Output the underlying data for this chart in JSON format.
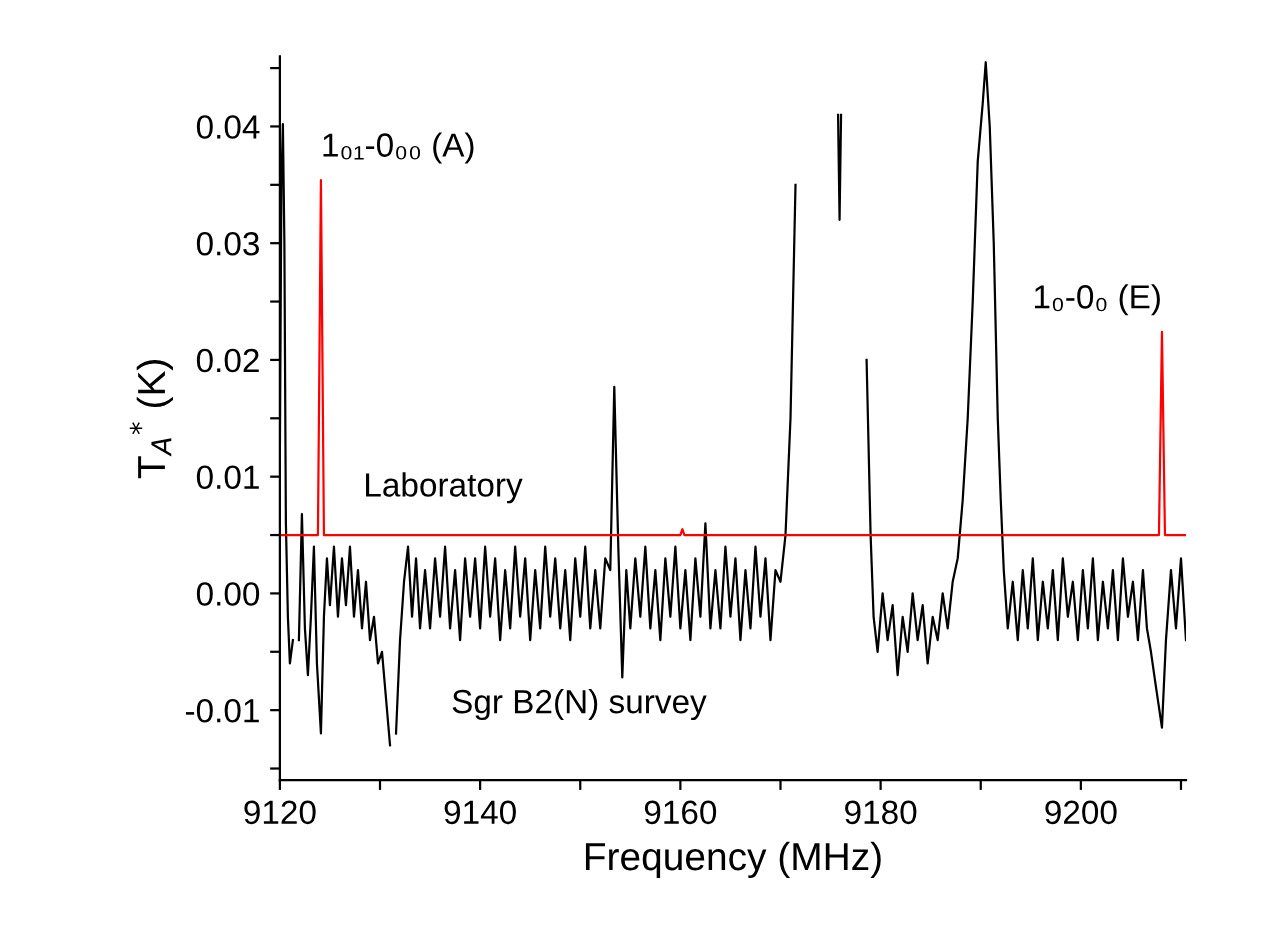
{
  "chart_data": {
    "type": "line",
    "xlabel": "Frequency (MHz)",
    "ylabel": "T$_{A}$$^{*}$ (K)",
    "xlim": [
      9120,
      9210.5
    ],
    "ylim": [
      -0.016,
      0.046
    ],
    "xticks": [
      9120,
      {
        "value": 9130,
        "label": null
      },
      9140,
      {
        "value": 9150,
        "label": null
      },
      9160,
      {
        "value": 9170,
        "label": null
      },
      9180,
      {
        "value": 9190,
        "label": null
      },
      9200,
      {
        "value": 9210,
        "label": null
      }
    ],
    "yticks": [
      {
        "value": -0.015,
        "label": null
      },
      {
        "value": -0.01,
        "label": "-0.01"
      },
      {
        "value": -0.005,
        "label": null
      },
      {
        "value": 0.0,
        "label": "0.00"
      },
      {
        "value": 0.005,
        "label": null
      },
      {
        "value": 0.01,
        "label": "0.01"
      },
      {
        "value": 0.015,
        "label": null
      },
      {
        "value": 0.02,
        "label": "0.02"
      },
      {
        "value": 0.025,
        "label": null
      },
      {
        "value": 0.03,
        "label": "0.03"
      },
      {
        "value": 0.035,
        "label": null
      },
      {
        "value": 0.04,
        "label": "0.04"
      },
      {
        "value": 0.045,
        "label": null
      }
    ],
    "grid": false,
    "legend": false,
    "marker": "none",
    "line_style": "solid",
    "annotations": [
      {
        "text": "1₀₁-0₀₀ (A)",
        "x": 9124.1,
        "y": 0.0354
      },
      {
        "text": "1₀-0₀ (E)",
        "x": 9208.1,
        "y": 0.0224
      }
    ],
    "series": [
      {
        "name": "Sgr B2(N) survey",
        "color": "#000000",
        "x": [
          9120.0,
          9120.15,
          9120.3,
          9120.45,
          9120.6,
          9120.8,
          9121.0,
          9121.3,
          9121.6,
          9121.9,
          9122.2,
          9122.5,
          9122.8,
          9123.1,
          9123.4,
          9123.7,
          9124.1,
          9124.4,
          9124.7,
          9125.0,
          9125.4,
          9125.8,
          9126.2,
          9126.6,
          9127.0,
          9127.4,
          9127.8,
          9128.2,
          9128.6,
          9129.0,
          9129.4,
          9129.8,
          9130.2,
          9130.6,
          9131.0,
          9131.3,
          9131.6,
          9132.0,
          9132.4,
          9132.8,
          9133.2,
          9133.6,
          9134.0,
          9134.5,
          9135.0,
          9135.5,
          9136.0,
          9136.5,
          9137.0,
          9137.5,
          9138.0,
          9138.5,
          9139.0,
          9139.5,
          9140.0,
          9140.5,
          9141.0,
          9141.5,
          9142.0,
          9142.5,
          9143.0,
          9143.5,
          9144.0,
          9144.5,
          9145.0,
          9145.5,
          9146.0,
          9146.5,
          9147.0,
          9147.5,
          9148.0,
          9148.5,
          9149.0,
          9149.5,
          9150.0,
          9150.5,
          9151.0,
          9151.5,
          9152.0,
          9152.5,
          9153.0,
          9153.4,
          9153.8,
          9154.2,
          9154.6,
          9155.0,
          9155.5,
          9156.0,
          9156.5,
          9157.0,
          9157.5,
          9158.0,
          9158.5,
          9159.0,
          9159.5,
          9160.0,
          9160.5,
          9161.0,
          9161.5,
          9162.0,
          9162.5,
          9163.0,
          9163.5,
          9164.0,
          9164.5,
          9165.0,
          9165.5,
          9166.0,
          9166.5,
          9167.0,
          9167.5,
          9168.0,
          9168.5,
          9169.0,
          9169.5,
          9170.0,
          9170.5,
          9171.0,
          9171.5,
          9171.8,
          9175.6,
          9175.75,
          9175.9,
          9176.05,
          9176.2,
          9178.2,
          9178.6,
          9179.0,
          9179.3,
          9179.7,
          9180.2,
          9180.7,
          9181.2,
          9181.7,
          9182.2,
          9182.7,
          9183.2,
          9183.7,
          9184.2,
          9184.7,
          9185.2,
          9185.7,
          9186.2,
          9186.7,
          9187.2,
          9187.7,
          9188.2,
          9188.7,
          9189.2,
          9189.7,
          9190.2,
          9190.5,
          9190.9,
          9191.3,
          9191.7,
          9192.0,
          9192.3,
          9192.7,
          9193.2,
          9193.7,
          9194.2,
          9194.7,
          9195.2,
          9195.7,
          9196.2,
          9196.7,
          9197.2,
          9197.7,
          9198.2,
          9198.7,
          9199.2,
          9199.7,
          9200.2,
          9200.7,
          9201.2,
          9201.7,
          9202.2,
          9202.7,
          9203.2,
          9203.7,
          9204.2,
          9204.7,
          9205.2,
          9205.7,
          9206.2,
          9206.6,
          9207.0,
          9207.5,
          9208.1,
          9208.5,
          9209.0,
          9209.5,
          9210.0,
          9210.5
        ],
        "values": [
          0.012,
          0.035,
          0.0402,
          0.03,
          0.006,
          -0.002,
          -0.006,
          -0.004,
          null,
          -0.004,
          0.0068,
          -0.003,
          -0.007,
          -0.002,
          0.004,
          -0.006,
          -0.012,
          -0.002,
          0.003,
          -0.001,
          0.004,
          -0.002,
          0.003,
          -0.001,
          0.004,
          -0.002,
          0.002,
          -0.003,
          0.001,
          -0.004,
          -0.002,
          -0.006,
          -0.005,
          -0.009,
          -0.013,
          null,
          -0.012,
          -0.004,
          0.001,
          0.004,
          -0.002,
          0.003,
          -0.003,
          0.002,
          -0.003,
          0.003,
          -0.002,
          0.004,
          -0.003,
          0.002,
          -0.004,
          0.003,
          -0.002,
          0.003,
          -0.003,
          0.004,
          -0.002,
          0.003,
          -0.004,
          0.002,
          -0.003,
          0.004,
          -0.002,
          0.003,
          -0.004,
          0.002,
          -0.003,
          0.004,
          -0.002,
          0.003,
          -0.003,
          0.002,
          -0.004,
          0.003,
          -0.002,
          0.004,
          -0.003,
          0.002,
          -0.003,
          0.003,
          0.002,
          0.0177,
          0.004,
          -0.0072,
          0.002,
          -0.003,
          0.003,
          -0.002,
          0.004,
          -0.003,
          0.002,
          -0.004,
          0.003,
          -0.002,
          0.004,
          -0.003,
          0.002,
          -0.004,
          0.003,
          -0.002,
          0.006,
          -0.003,
          0.002,
          -0.003,
          0.004,
          -0.002,
          0.003,
          -0.004,
          0.002,
          -0.003,
          0.004,
          -0.002,
          0.003,
          -0.004,
          0.002,
          0.001,
          0.005,
          0.015,
          0.035,
          null,
          null,
          0.041,
          0.032,
          0.041,
          null,
          null,
          0.02,
          0.005,
          -0.002,
          -0.005,
          0.0,
          -0.004,
          -0.001,
          -0.007,
          -0.002,
          -0.005,
          0.0,
          -0.004,
          -0.001,
          -0.006,
          -0.002,
          -0.004,
          0.0,
          -0.003,
          0.001,
          0.003,
          0.008,
          0.015,
          0.025,
          0.037,
          0.042,
          0.0455,
          0.04,
          0.03,
          0.015,
          0.008,
          0.002,
          -0.003,
          0.001,
          -0.004,
          0.002,
          -0.003,
          0.003,
          -0.004,
          0.001,
          -0.003,
          0.002,
          -0.004,
          0.003,
          -0.002,
          0.001,
          -0.004,
          0.002,
          -0.003,
          0.003,
          -0.004,
          0.001,
          -0.003,
          0.002,
          -0.004,
          0.003,
          -0.002,
          0.001,
          -0.004,
          0.002,
          -0.003,
          -0.005,
          -0.008,
          -0.0115,
          -0.004,
          0.002,
          -0.003,
          0.003,
          -0.004
        ]
      },
      {
        "name": "Laboratory",
        "color": "#ff0000",
        "x": [
          9120.0,
          9123.8,
          9124.1,
          9124.4,
          9160.0,
          9160.2,
          9160.4,
          9207.8,
          9208.1,
          9208.4,
          9210.5
        ],
        "values": [
          0.005,
          0.005,
          0.0354,
          0.005,
          0.005,
          0.0055,
          0.005,
          0.005,
          0.0224,
          0.005,
          0.005
        ]
      }
    ]
  }
}
